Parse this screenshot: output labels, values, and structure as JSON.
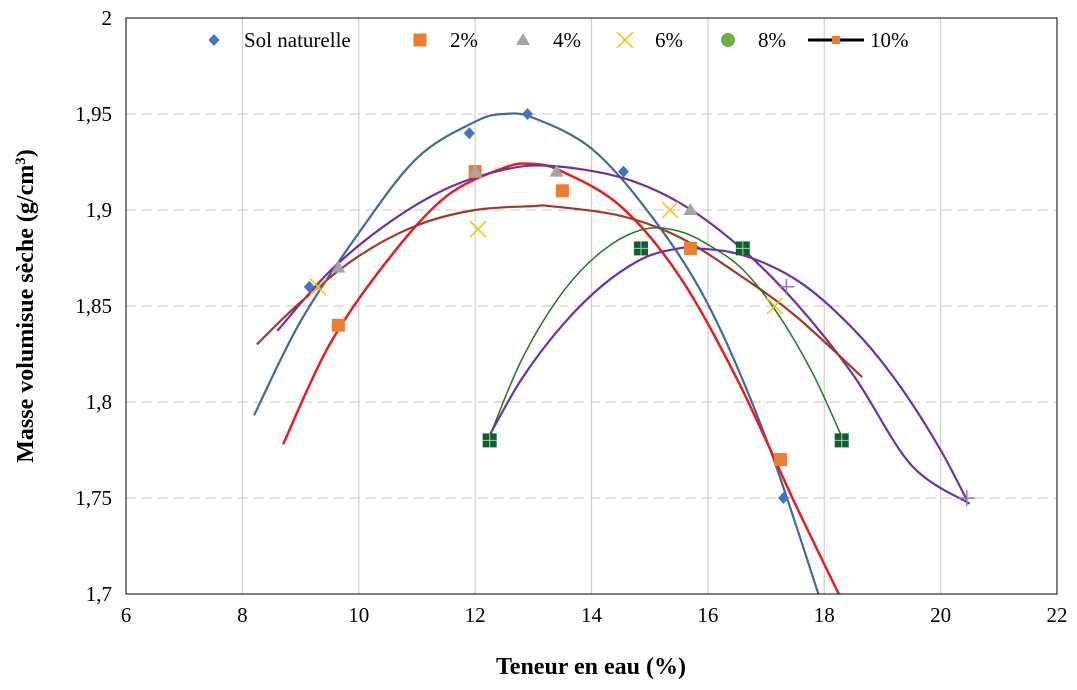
{
  "chart_data": {
    "type": "scatter",
    "title": "",
    "xlabel": "Teneur en eau (%)",
    "ylabel_main": "Masse volumisue sèche (g/cm",
    "ylabel_sup": "3",
    "ylabel_tail": ")",
    "xlim": [
      6,
      22
    ],
    "ylim": [
      1.7,
      2.0
    ],
    "x_ticks": [
      6,
      8,
      10,
      12,
      14,
      16,
      18,
      20,
      22
    ],
    "x_tick_labels": [
      "6",
      "8",
      "10",
      "12",
      "14",
      "16",
      "18",
      "20",
      "22"
    ],
    "y_ticks": [
      1.7,
      1.75,
      1.8,
      1.85,
      1.9,
      1.95,
      2.0
    ],
    "y_tick_labels": [
      "1,7",
      "1,75",
      "1,8",
      "1,85",
      "1,9",
      "1,95",
      "2"
    ],
    "grid": true,
    "legend_position": "top",
    "series": [
      {
        "name": "Sol naturelle",
        "marker": "diamond",
        "color": "#4472C4",
        "x": [
          9.15,
          11.9,
          12.9,
          14.55,
          17.3
        ],
        "y": [
          1.86,
          1.94,
          1.95,
          1.92,
          1.75
        ]
      },
      {
        "name": "2%",
        "marker": "square",
        "color": "#ED7D31",
        "x": [
          9.65,
          12.0,
          13.5,
          15.7,
          17.25
        ],
        "y": [
          1.84,
          1.92,
          1.91,
          1.88,
          1.77
        ]
      },
      {
        "name": "4%",
        "marker": "triangle",
        "color": "#A5A5A5",
        "x": [
          9.65,
          12.0,
          13.4,
          15.7
        ],
        "y": [
          1.87,
          1.92,
          1.92,
          1.9
        ]
      },
      {
        "name": "6%",
        "marker": "x",
        "color": "#FFC000",
        "x": [
          9.3,
          12.05,
          15.35,
          17.15
        ],
        "y": [
          1.86,
          1.89,
          1.9,
          1.85
        ]
      },
      {
        "name": "8%",
        "marker": "circle",
        "color": "#70AD47",
        "x": [],
        "y": []
      },
      {
        "name": "10%",
        "marker": "line-square",
        "color": "#000000",
        "x": [],
        "y": []
      }
    ],
    "extra_points": [
      {
        "marker": "square-cross",
        "color": "#0E5E33",
        "x": [
          12.25,
          14.85,
          16.6,
          18.3
        ],
        "y": [
          1.78,
          1.88,
          1.88,
          1.78
        ]
      },
      {
        "marker": "plus",
        "color": "#8E7CC3",
        "x": [
          17.35,
          20.45
        ],
        "y": [
          1.86,
          1.75
        ]
      }
    ],
    "fit_curves": [
      {
        "color": "#3E6A9E",
        "width": 2.2,
        "x": [
          8.2,
          9.0,
          10.0,
          11.0,
          12.0,
          12.5,
          13.0,
          14.0,
          15.0,
          16.0,
          17.0,
          17.9
        ],
        "y": [
          1.793,
          1.842,
          1.888,
          1.927,
          1.946,
          1.95,
          1.948,
          1.932,
          1.898,
          1.851,
          1.781,
          1.7
        ]
      },
      {
        "color": "#E81E1E",
        "width": 2.5,
        "x": [
          8.7,
          9.5,
          10.5,
          11.5,
          12.5,
          13.0,
          13.5,
          14.5,
          15.5,
          16.5,
          17.5,
          18.25
        ],
        "y": [
          1.778,
          1.83,
          1.874,
          1.907,
          1.922,
          1.924,
          1.92,
          1.902,
          1.866,
          1.812,
          1.747,
          1.7
        ]
      },
      {
        "color": "#7030A0",
        "width": 2.2,
        "x": [
          8.6,
          9.5,
          10.5,
          11.5,
          12.5,
          13.3,
          14.5,
          15.5,
          16.5,
          17.5,
          18.5,
          19.5,
          20.5
        ],
        "y": [
          1.837,
          1.868,
          1.893,
          1.911,
          1.921,
          1.923,
          1.917,
          1.904,
          1.882,
          1.852,
          1.814,
          1.767,
          1.747
        ]
      },
      {
        "color": "#A0382E",
        "width": 2.2,
        "x": [
          8.25,
          9.0,
          10.0,
          11.0,
          12.0,
          13.0,
          13.3,
          14.5,
          15.5,
          16.5,
          17.5,
          18.65
        ],
        "y": [
          1.83,
          1.852,
          1.876,
          1.892,
          1.9,
          1.902,
          1.902,
          1.897,
          1.886,
          1.867,
          1.845,
          1.813
        ]
      },
      {
        "color": "#1E7A1E",
        "width": 1.5,
        "x": [
          12.25,
          12.8,
          13.5,
          14.2,
          14.9,
          15.5,
          16.0,
          16.6,
          17.2,
          17.8,
          18.3
        ],
        "y": [
          1.782,
          1.822,
          1.857,
          1.879,
          1.89,
          1.889,
          1.882,
          1.869,
          1.846,
          1.815,
          1.782
        ]
      },
      {
        "color": "#7030A0",
        "width": 2.2,
        "x": [
          12.2,
          12.8,
          13.5,
          14.2,
          14.9,
          15.5,
          15.8,
          16.4,
          17.0,
          17.6,
          18.2,
          18.8,
          19.4,
          20.0,
          20.45
        ],
        "y": [
          1.78,
          1.812,
          1.84,
          1.861,
          1.875,
          1.88,
          1.88,
          1.878,
          1.872,
          1.862,
          1.847,
          1.828,
          1.804,
          1.775,
          1.749
        ]
      }
    ]
  }
}
